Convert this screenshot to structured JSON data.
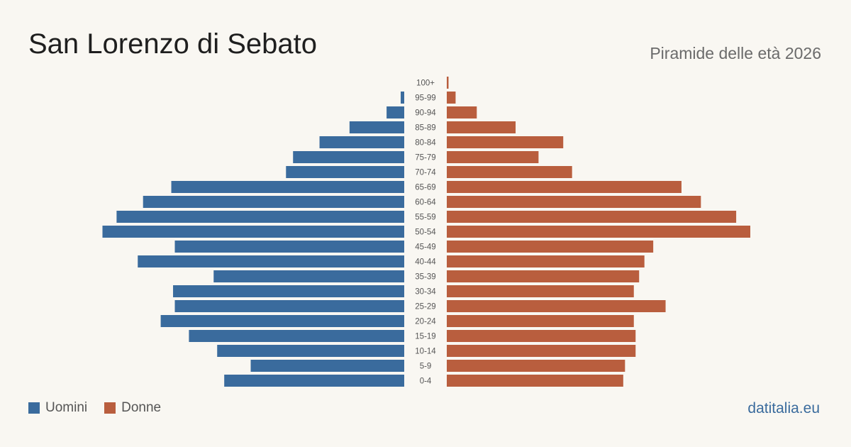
{
  "header": {
    "title": "San Lorenzo di Sebato",
    "subtitle": "Piramide delle età 2026"
  },
  "legend": {
    "men_label": "Uomini",
    "women_label": "Donne"
  },
  "brand": "datitalia.eu",
  "colors": {
    "men": "#3a6b9d",
    "women": "#b95e3e",
    "background": "#f9f7f2"
  },
  "chart_data": {
    "type": "bar",
    "orientation": "horizontal-pyramid",
    "categories": [
      "100+",
      "95-99",
      "90-94",
      "85-89",
      "80-84",
      "75-79",
      "70-74",
      "65-69",
      "60-64",
      "55-59",
      "50-54",
      "45-49",
      "40-44",
      "35-39",
      "30-34",
      "25-29",
      "20-24",
      "15-19",
      "10-14",
      "5-9",
      "0-4"
    ],
    "series": [
      {
        "name": "Uomini",
        "values": [
          0,
          2,
          10,
          31,
          48,
          63,
          67,
          132,
          148,
          163,
          171,
          130,
          151,
          108,
          131,
          130,
          138,
          122,
          106,
          87,
          102
        ]
      },
      {
        "name": "Donne",
        "values": [
          1,
          5,
          17,
          39,
          66,
          52,
          71,
          133,
          144,
          164,
          172,
          117,
          112,
          109,
          106,
          124,
          106,
          107,
          107,
          101,
          100
        ]
      }
    ],
    "xlim": [
      0,
      172
    ],
    "grid": false,
    "legend_position": "bottom-left"
  }
}
